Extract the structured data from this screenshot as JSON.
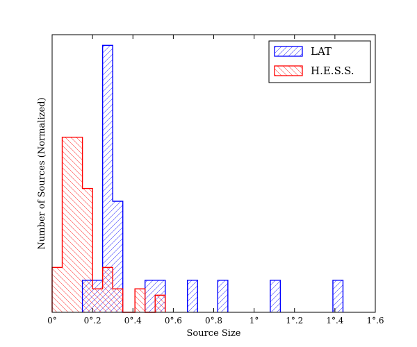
{
  "chart_data": {
    "type": "bar",
    "subtype": "step-histogram",
    "title": "",
    "xlabel": "Source Size",
    "ylabel": "Number of Sources (Normalized)",
    "xlim": [
      0,
      1.6
    ],
    "ylim": [
      0,
      1.3
    ],
    "degree_ticks": true,
    "x_ticks": [
      {
        "value": 0,
        "label": "0°"
      },
      {
        "value": 0.2,
        "label": "0°.2"
      },
      {
        "value": 0.4,
        "label": "0°.4"
      },
      {
        "value": 0.6,
        "label": "0°.6"
      },
      {
        "value": 0.8,
        "label": "0°.8"
      },
      {
        "value": 1.0,
        "label": "1°"
      },
      {
        "value": 1.2,
        "label": "1°.2"
      },
      {
        "value": 1.4,
        "label": "1°.4"
      },
      {
        "value": 1.6,
        "label": "1°.6"
      }
    ],
    "y_tick_labels": false,
    "grid": false,
    "legend_position": "top-right",
    "series": [
      {
        "name": "LAT",
        "color": "#0000ff",
        "hatch": "forward-diagonal",
        "bins": [
          {
            "x0": 0.15,
            "x1": 0.25,
            "y": 0.15
          },
          {
            "x0": 0.25,
            "x1": 0.3,
            "y": 1.25
          },
          {
            "x0": 0.3,
            "x1": 0.35,
            "y": 0.52
          },
          {
            "x0": 0.46,
            "x1": 0.56,
            "y": 0.15
          },
          {
            "x0": 0.67,
            "x1": 0.72,
            "y": 0.15
          },
          {
            "x0": 0.82,
            "x1": 0.87,
            "y": 0.15
          },
          {
            "x0": 1.08,
            "x1": 1.13,
            "y": 0.15
          },
          {
            "x0": 1.39,
            "x1": 1.44,
            "y": 0.15
          }
        ]
      },
      {
        "name": "H.E.S.S.",
        "color": "#ff0000",
        "hatch": "back-diagonal",
        "bins": [
          {
            "x0": 0.0,
            "x1": 0.05,
            "y": 0.21
          },
          {
            "x0": 0.05,
            "x1": 0.15,
            "y": 0.82
          },
          {
            "x0": 0.15,
            "x1": 0.2,
            "y": 0.58
          },
          {
            "x0": 0.2,
            "x1": 0.25,
            "y": 0.11
          },
          {
            "x0": 0.25,
            "x1": 0.3,
            "y": 0.21
          },
          {
            "x0": 0.3,
            "x1": 0.35,
            "y": 0.11
          },
          {
            "x0": 0.35,
            "x1": 0.41,
            "y": 0.0
          },
          {
            "x0": 0.41,
            "x1": 0.46,
            "y": 0.11
          },
          {
            "x0": 0.46,
            "x1": 0.51,
            "y": 0.0
          },
          {
            "x0": 0.51,
            "x1": 0.56,
            "y": 0.08
          }
        ]
      }
    ]
  }
}
